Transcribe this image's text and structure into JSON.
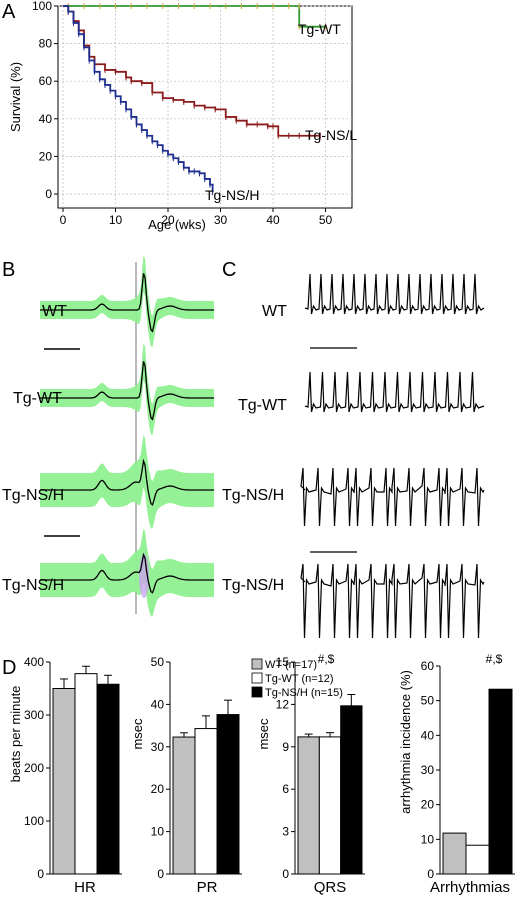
{
  "panel_labels": {
    "a": "A",
    "b": "B",
    "c": "C",
    "d": "D"
  },
  "survival": {
    "ylabel": "Survival (%)",
    "xlabel": "Age (wks)",
    "xticks": [
      "0",
      "10",
      "20",
      "30",
      "40",
      "50"
    ],
    "yticks": [
      "0",
      "20",
      "40",
      "60",
      "80",
      "100"
    ],
    "series_labels": [
      "Tg-WT",
      "Tg-NS/L",
      "Tg-NS/H"
    ]
  },
  "ecg_b": {
    "labels": [
      "WT",
      "Tg-WT",
      "Tg-NS/H",
      "Tg-NS/H"
    ]
  },
  "ecg_c": {
    "labels": [
      "WT",
      "Tg-WT",
      "Tg-NS/H",
      "Tg-NS/H"
    ]
  },
  "bars": {
    "legend": [
      "WT (n=17)",
      "Tg-WT (n=12)",
      "Tg-NS/H (n=15)"
    ],
    "hr": {
      "xlabel": "HR",
      "ylabel": "beats per minute",
      "yticks": [
        "0",
        "100",
        "200",
        "300",
        "400"
      ]
    },
    "pr": {
      "xlabel": "PR",
      "ylabel": "msec",
      "yticks": [
        "0",
        "10",
        "20",
        "30",
        "40",
        "50"
      ]
    },
    "qrs": {
      "xlabel": "QRS",
      "ylabel": "msec",
      "yticks": [
        "0",
        "3",
        "6",
        "9",
        "12",
        "15"
      ],
      "annotation": "#,$"
    },
    "arr": {
      "xlabel": "Arrhythmias",
      "ylabel": "arrhythmia incidence (%)",
      "yticks": [
        "0",
        "10",
        "20",
        "30",
        "40",
        "50",
        "60"
      ],
      "annotation": "#,$"
    }
  },
  "colors": {
    "wt_bar": "#c0c0c0",
    "tgwt_bar": "#ffffff",
    "tgnsh_bar": "#000000",
    "tgwt_line": "#2e9a2e",
    "tgnsl_line": "#8b1a1a",
    "tgnsh_line": "#1f2f8f",
    "ecg_fill": "#8ff08f"
  },
  "chart_data": [
    {
      "type": "line",
      "title": "",
      "xlabel": "Age (wks)",
      "ylabel": "Survival (%)",
      "xlim": [
        0,
        55
      ],
      "ylim": [
        0,
        100
      ],
      "grid": true,
      "series": [
        {
          "name": "Tg-WT",
          "x": [
            0,
            45,
            45,
            50
          ],
          "y": [
            100,
            100,
            89,
            89
          ]
        },
        {
          "name": "Tg-NS/L",
          "x": [
            0,
            1,
            2,
            3,
            4,
            5,
            6,
            8,
            10,
            12,
            13,
            15,
            17,
            19,
            21,
            23,
            25,
            27,
            29,
            31,
            33,
            35,
            37,
            39,
            40,
            41,
            43,
            45,
            47,
            49
          ],
          "y": [
            100,
            97,
            92,
            87,
            79,
            73,
            69,
            66,
            65,
            62,
            60,
            59,
            54,
            51,
            50,
            49,
            47,
            46,
            45,
            41,
            39,
            37,
            37,
            36,
            36,
            31,
            31,
            31,
            31,
            31
          ]
        },
        {
          "name": "Tg-NS/H",
          "x": [
            0,
            1,
            2,
            3,
            4,
            5,
            6,
            7,
            8,
            9,
            10,
            11,
            12,
            13,
            14,
            15,
            16,
            17,
            18,
            19,
            20,
            21,
            22,
            23,
            24,
            25,
            26,
            27,
            28,
            28.5
          ],
          "y": [
            100,
            97,
            91,
            85,
            78,
            71,
            65,
            61,
            58,
            55,
            52,
            49,
            45,
            41,
            37,
            34,
            31,
            28,
            26,
            23,
            21,
            19,
            17,
            14,
            12,
            12,
            11,
            8,
            5,
            1
          ]
        }
      ]
    },
    {
      "type": "bar",
      "title": "HR",
      "ylabel": "beats per minute",
      "ylim": [
        0,
        400
      ],
      "categories": [
        "WT (n=17)",
        "Tg-WT (n=12)",
        "Tg-NS/H (n=15)"
      ],
      "values": [
        350,
        378,
        358
      ],
      "errors": [
        18,
        14,
        17
      ]
    },
    {
      "type": "bar",
      "title": "PR",
      "ylabel": "msec",
      "ylim": [
        0,
        50
      ],
      "categories": [
        "WT (n=17)",
        "Tg-WT (n=12)",
        "Tg-NS/H (n=15)"
      ],
      "values": [
        32.3,
        34.3,
        37.6
      ],
      "errors": [
        1.0,
        3.0,
        3.4
      ]
    },
    {
      "type": "bar",
      "title": "QRS",
      "ylabel": "msec",
      "ylim": [
        0,
        15
      ],
      "categories": [
        "WT (n=17)",
        "Tg-WT (n=12)",
        "Tg-NS/H (n=15)"
      ],
      "values": [
        9.7,
        9.7,
        11.9
      ],
      "errors": [
        0.2,
        0.3,
        0.8
      ]
    },
    {
      "type": "bar",
      "title": "Arrhythmias",
      "ylabel": "arrhythmia incidence (%)",
      "ylim": [
        0,
        60
      ],
      "categories": [
        "WT (n=17)",
        "Tg-WT (n=12)",
        "Tg-NS/H (n=15)"
      ],
      "values": [
        11.8,
        8.3,
        53.3
      ],
      "errors": [
        0,
        0,
        0
      ]
    }
  ]
}
